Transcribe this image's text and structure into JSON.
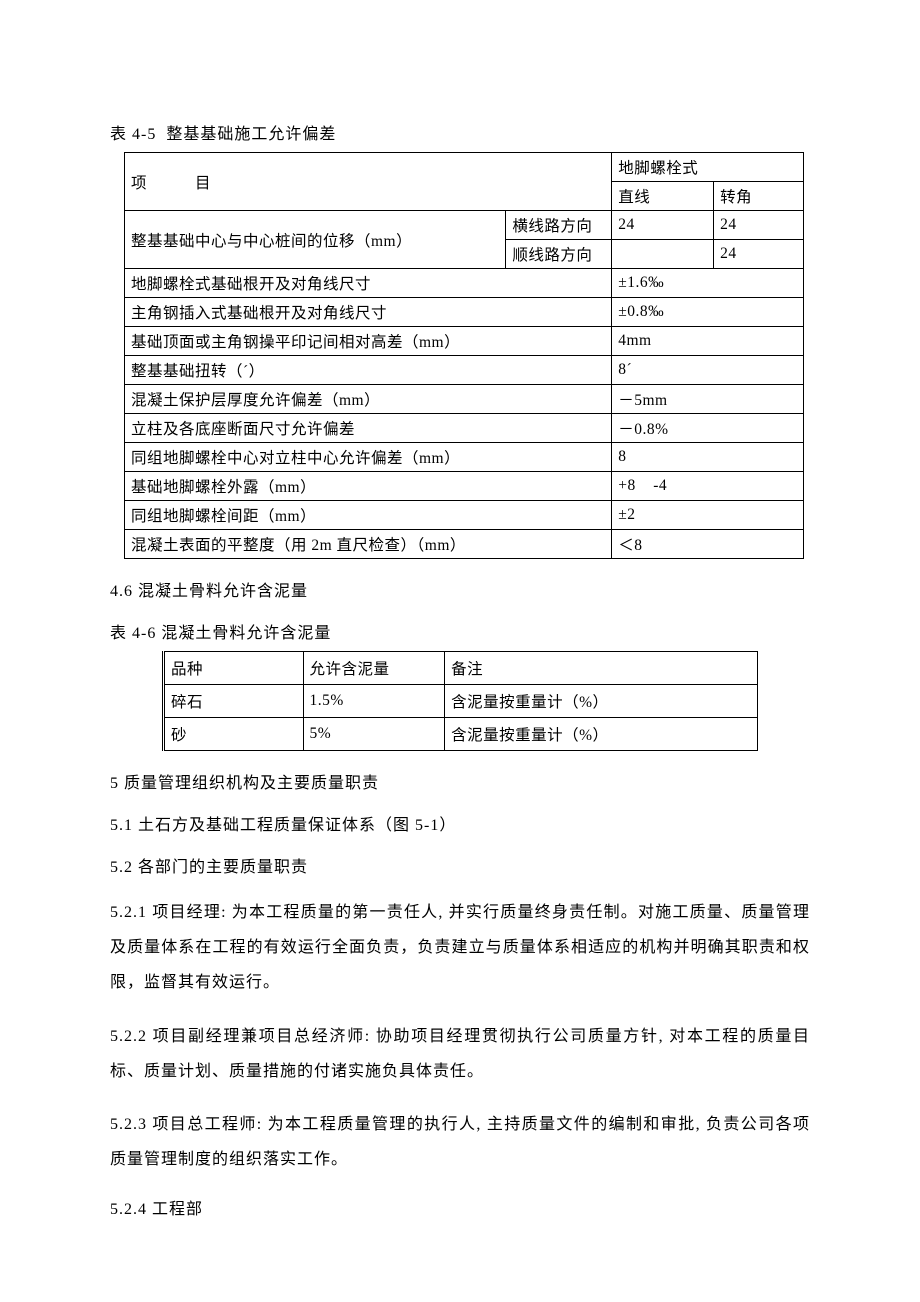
{
  "captions": {
    "t45": "表 4-5  整基基础施工允许偏差",
    "t46": "表 4-6 混凝土骨料允许含泥量"
  },
  "table45": {
    "header": {
      "project": "项　　　目",
      "boltType": "地脚螺栓式",
      "straight": "直线",
      "corner": "转角"
    },
    "rows": [
      {
        "label": "整基基础中心与中心桩间的位移（mm）",
        "subA": "横线路方向",
        "v1": "24",
        "v2": "24",
        "subB": "顺线路方向",
        "w1": "",
        "w2": "24"
      },
      {
        "label": "地脚螺栓式基础根开及对角线尺寸",
        "value": "±1.6‰"
      },
      {
        "label": "主角钢插入式基础根开及对角线尺寸",
        "value": "±0.8‰"
      },
      {
        "label": "基础顶面或主角钢操平印记间相对高差（mm）",
        "value": "4mm"
      },
      {
        "label": "整基基础扭转（´）",
        "value": "8´"
      },
      {
        "label": "混凝土保护层厚度允许偏差（mm）",
        "value": "－5mm"
      },
      {
        "label": "立柱及各底座断面尺寸允许偏差",
        "value": "－0.8%"
      },
      {
        "label": "同组地脚螺栓中心对立柱中心允许偏差（mm）",
        "value": "8"
      },
      {
        "label": "基础地脚螺栓外露（mm）",
        "value": "+8    -4"
      },
      {
        "label": "同组地脚螺栓间距（mm）",
        "value": "±2"
      },
      {
        "label": "混凝土表面的平整度（用 2m 直尺检查）（mm）",
        "value": "＜8"
      }
    ]
  },
  "headings": {
    "h46": "4.6 混凝土骨料允许含泥量",
    "h5": "5 质量管理组织机构及主要质量职责",
    "h51": "5.1 土石方及基础工程质量保证体系（图 5-1）",
    "h52": "5.2 各部门的主要质量职责",
    "h524": "5.2.4 工程部"
  },
  "table46": {
    "header": {
      "c1": "品种",
      "c2": "允许含泥量",
      "c3": "备注"
    },
    "rows": [
      {
        "c1": "碎石",
        "c2": "1.5%",
        "c3": "含泥量按重量计（%）"
      },
      {
        "c1": "砂",
        "c2": "5%",
        "c3": "含泥量按重量计（%）"
      }
    ]
  },
  "paragraphs": {
    "p521": "5.2.1 项目经理: 为本工程质量的第一责任人, 并实行质量终身责任制。对施工质量、质量管理及质量体系在工程的有效运行全面负责，负责建立与质量体系相适应的机构并明确其职责和权限，监督其有效运行。",
    "p522": "5.2.2 项目副经理兼项目总经济师: 协助项目经理贯彻执行公司质量方针, 对本工程的质量目标、质量计划、质量措施的付诸实施负具体责任。",
    "p523": "5.2.3 项目总工程师: 为本工程质量管理的执行人, 主持质量文件的编制和审批, 负责公司各项质量管理制度的组织落实工作。"
  },
  "style": {
    "background_color": "#ffffff",
    "text_color": "#000000",
    "border_color": "#000000",
    "body_fontsize": 16,
    "table_fontsize": 15.5,
    "font_family": "SimSun"
  }
}
